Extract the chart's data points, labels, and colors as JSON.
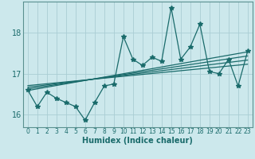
{
  "title": "",
  "xlabel": "Humidex (Indice chaleur)",
  "background_color": "#cce8ec",
  "grid_color": "#aacdd4",
  "line_color": "#1a6b6b",
  "xlim": [
    -0.5,
    23.5
  ],
  "ylim": [
    15.7,
    18.75
  ],
  "yticks": [
    16,
    17,
    18
  ],
  "xticks": [
    0,
    1,
    2,
    3,
    4,
    5,
    6,
    7,
    8,
    9,
    10,
    11,
    12,
    13,
    14,
    15,
    16,
    17,
    18,
    19,
    20,
    21,
    22,
    23
  ],
  "x": [
    0,
    1,
    2,
    3,
    4,
    5,
    6,
    7,
    8,
    9,
    10,
    11,
    12,
    13,
    14,
    15,
    16,
    17,
    18,
    19,
    20,
    21,
    22,
    23
  ],
  "y": [
    16.6,
    16.2,
    16.55,
    16.4,
    16.3,
    16.2,
    15.87,
    16.3,
    16.7,
    16.75,
    17.9,
    17.35,
    17.2,
    17.4,
    17.3,
    18.6,
    17.35,
    17.65,
    18.2,
    17.05,
    17.0,
    17.35,
    16.7,
    17.55
  ],
  "regression_lines": [
    {
      "start_x": 0,
      "start_y": 16.59,
      "end_x": 23,
      "end_y": 17.53
    },
    {
      "start_x": 0,
      "start_y": 16.63,
      "end_x": 23,
      "end_y": 17.43
    },
    {
      "start_x": 0,
      "start_y": 16.67,
      "end_x": 23,
      "end_y": 17.33
    },
    {
      "start_x": 0,
      "start_y": 16.71,
      "end_x": 23,
      "end_y": 17.23
    }
  ]
}
